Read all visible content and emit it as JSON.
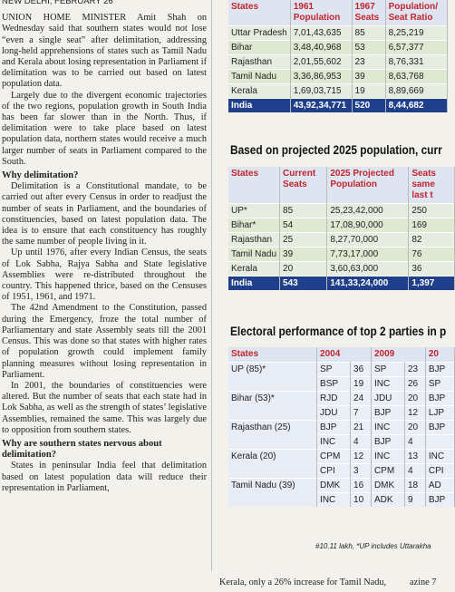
{
  "article": {
    "dateline": "NEW DELHI, FEBRUARY 26",
    "sections": [
      {
        "paragraphs": [
          "UNION HOME MINISTER Amit Shah on Wednesday said that southern states would not lose “even a single seat” after delimitation, addressing long-held apprehensions of states such as Tamil Nadu and Kerala about losing representation in Parliament if delimitation was to be carried out based on latest population data.",
          "Largely due to the divergent economic trajectories of the two regions, population growth in South India has been far slower than in the North. Thus, if delimitation were to take place based on latest population data, northern states would receive a much larger number of seats in Parliament compared to the South."
        ]
      },
      {
        "heading": "Why delimitation?",
        "paragraphs": [
          "Delimitation is a Constitutional mandate, to be carried out after every Census in order to readjust the number of seats in Parliament, and the boundaries of constituencies, based on latest population data. The idea is to ensure that each constituency has roughly the same number of people living in it.",
          "Up until 1976, after every Indian Census, the seats of Lok Sabha, Rajya Sabha and State legislative Assemblies were re-distributed throughout the country. This happened thrice, based on the Censuses of 1951, 1961, and 1971.",
          "The 42nd Amendment to the Constitution, passed during the Emergency, froze the total number of Parliamentary and state Assembly seats till the 2001 Census. This was done so that states with higher rates of population growth could implement family planning measures without losing representation in Parliament.",
          "In 2001, the boundaries of constituencies were altered. But the number of seats that each state had in Lok Sabha, as well as the strength of states’ legislative Assemblies, remained the same. This was largely due to opposition from southern states."
        ]
      },
      {
        "heading": "Why are southern states nervous about delimitation?",
        "paragraphs": [
          "States in peninsular India feel that delimitation based on latest population data will reduce their representation in Parliament,"
        ]
      }
    ]
  },
  "table1": {
    "header": [
      "States",
      "1961 Population",
      "1967 Seats",
      "Population/ Seat Ratio"
    ],
    "rows": [
      [
        "Uttar Pradesh",
        "7,01,43,635",
        "85",
        "8,25,219"
      ],
      [
        "Bihar",
        "3,48,40,968",
        "53",
        "6,57,377"
      ],
      [
        "Rajasthan",
        "2,01,55,602",
        "23",
        "8,76,331"
      ],
      [
        "Tamil Nadu",
        "3,36,86,953",
        "39",
        "8,63,768"
      ],
      [
        "Kerala",
        "1,69,03,715",
        "19",
        "8,89,669"
      ],
      [
        "India",
        "43,92,34,771",
        "520",
        "8,44,682"
      ]
    ]
  },
  "heading2": "Based on projected 2025 population, curr",
  "table2": {
    "header": [
      "States",
      "Current Seats",
      "2025 Projected Population",
      "Seats same last t"
    ],
    "rows": [
      [
        "UP*",
        "85",
        "25,23,42,000",
        "250"
      ],
      [
        "Bihar*",
        "54",
        "17,08,90,000",
        "169"
      ],
      [
        "Rajasthan",
        "25",
        "8,27,70,000",
        "82"
      ],
      [
        "Tamil Nadu",
        "39",
        "7,73,17,000",
        "76"
      ],
      [
        "Kerala",
        "20",
        "3,60,63,000",
        "36"
      ],
      [
        "India",
        "543",
        "141,33,24,000",
        "1,397"
      ]
    ]
  },
  "heading3": "Electoral performance of top 2 parties in p",
  "table3": {
    "header": [
      "States",
      "2004",
      "2009",
      "20"
    ],
    "groups": [
      {
        "state": "UP (85)*",
        "rows": [
          [
            "SP",
            "36",
            "SP",
            "23",
            "BJP"
          ],
          [
            "BSP",
            "19",
            "INC",
            "26",
            "SP"
          ]
        ]
      },
      {
        "state": "Bihar (53)*",
        "rows": [
          [
            "RJD",
            "24",
            "JDU",
            "20",
            "BJP"
          ],
          [
            "JDU",
            "7",
            "BJP",
            "12",
            "LJP"
          ]
        ]
      },
      {
        "state": "Rajasthan (25)",
        "rows": [
          [
            "BJP",
            "21",
            "INC",
            "20",
            "BJP"
          ],
          [
            "INC",
            "4",
            "BJP",
            "4",
            ""
          ]
        ]
      },
      {
        "state": "Kerala (20)",
        "rows": [
          [
            "CPM",
            "12",
            "INC",
            "13",
            "INC"
          ],
          [
            "CPI",
            "3",
            "CPM",
            "4",
            "CPI"
          ]
        ]
      },
      {
        "state": "Tamil Nadu (39)",
        "rows": [
          [
            "DMK",
            "16",
            "DMK",
            "18",
            "AD"
          ],
          [
            "INC",
            "10",
            "ADK",
            "9",
            "BJP"
          ]
        ]
      }
    ]
  },
  "footnote": "#10.11 lakh, *UP includes Uttarakha",
  "bottom": {
    "left": "Kerala, only a 26% increase for Tamil Nadu,",
    "right": "azine 7"
  }
}
